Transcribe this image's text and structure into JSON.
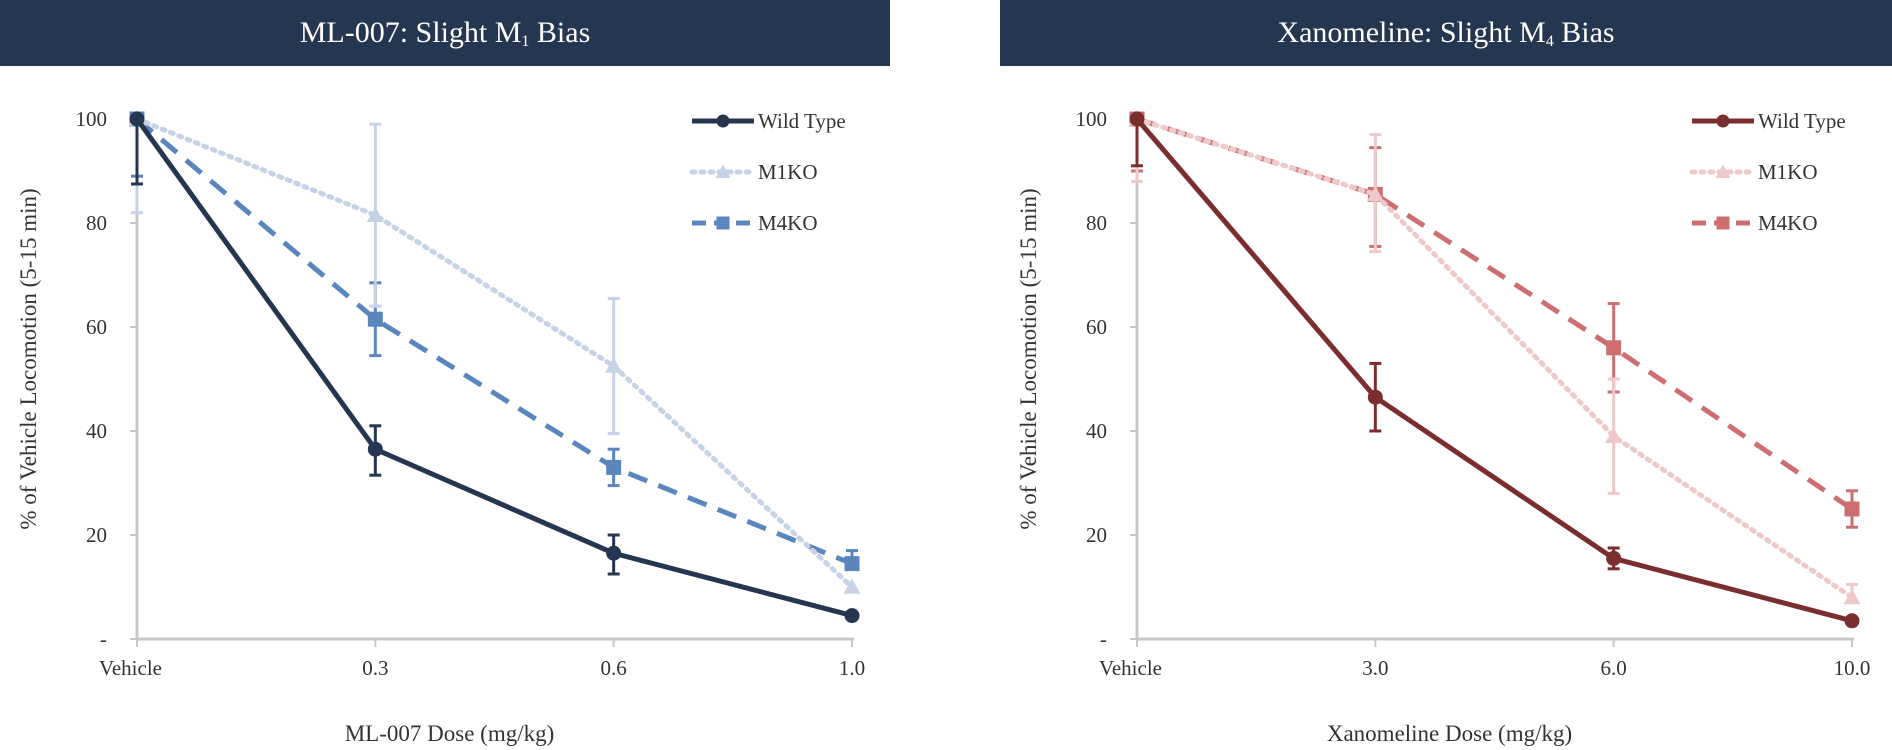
{
  "chart_data": [
    {
      "type": "line",
      "title": {
        "prefix": "ML-007: Slight M",
        "sub": "1",
        "suffix": " Bias"
      },
      "categories": [
        "Vehicle",
        "0.3",
        "0.6",
        "1.0"
      ],
      "xlabel": "ML-007 Dose (mg/kg)",
      "ylabel": "% of Vehicle Locomotion (5-15 min)",
      "ylim": [
        0,
        100
      ],
      "yticks": [
        0,
        20,
        40,
        60,
        80,
        100
      ],
      "ytick_labels": [
        "-",
        "20",
        "40",
        "60",
        "80",
        "100"
      ],
      "legend_position": "top-right",
      "series": [
        {
          "name": "Wild Type",
          "style": "solid",
          "marker": "circle",
          "color": "#243650",
          "values": [
            100,
            36.5,
            16.5,
            4.5
          ],
          "err_low": [
            12.5,
            5,
            4,
            0
          ],
          "err_high": [
            0,
            4.5,
            3.5,
            0
          ]
        },
        {
          "name": "M1KO",
          "style": "dotted",
          "marker": "triangle",
          "color": "#c6d3e6",
          "values": [
            100,
            81.5,
            52.5,
            10
          ],
          "err_low": [
            18,
            17.5,
            13,
            0
          ],
          "err_high": [
            0,
            17.5,
            13,
            0
          ]
        },
        {
          "name": "M4KO",
          "style": "dashed",
          "marker": "square",
          "color": "#5a86bd",
          "values": [
            100,
            61.5,
            33,
            14.5
          ],
          "err_low": [
            11,
            7,
            3.5,
            0
          ],
          "err_high": [
            0,
            7,
            3.5,
            2.5
          ]
        }
      ]
    },
    {
      "type": "line",
      "title": {
        "prefix": "Xanomeline: Slight M",
        "sub": "4",
        "suffix": " Bias"
      },
      "categories": [
        "Vehicle",
        "3.0",
        "6.0",
        "10.0"
      ],
      "xlabel": "Xanomeline Dose (mg/kg)",
      "ylabel": "% of Vehicle Locomotion (5-15 min)",
      "ylim": [
        0,
        100
      ],
      "yticks": [
        0,
        20,
        40,
        60,
        80,
        100
      ],
      "ytick_labels": [
        "-",
        "20",
        "40",
        "60",
        "80",
        "100"
      ],
      "legend_position": "top-right",
      "series": [
        {
          "name": "Wild Type",
          "style": "solid",
          "marker": "circle",
          "color": "#7a2e2e",
          "values": [
            100,
            46.5,
            15.5,
            3.5
          ],
          "err_low": [
            9,
            6.5,
            2,
            0
          ],
          "err_high": [
            0,
            6.5,
            2,
            0
          ]
        },
        {
          "name": "M1KO",
          "style": "dotted",
          "marker": "triangle",
          "color": "#edc9c9",
          "values": [
            100,
            85.5,
            39,
            8
          ],
          "err_low": [
            12,
            11,
            11,
            0
          ],
          "err_high": [
            0,
            11.5,
            11,
            2.5
          ]
        },
        {
          "name": "M4KO",
          "style": "dashed",
          "marker": "square",
          "color": "#cd6e70",
          "values": [
            100,
            85.5,
            56,
            25
          ],
          "err_low": [
            10,
            10,
            8.5,
            3.5
          ],
          "err_high": [
            0,
            9,
            8.5,
            3.5
          ]
        }
      ]
    }
  ]
}
